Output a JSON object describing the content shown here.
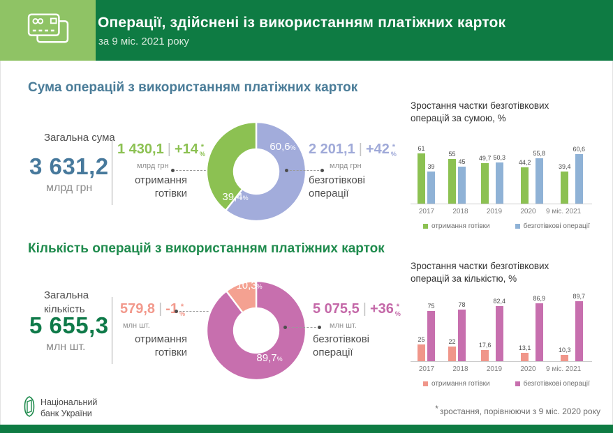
{
  "header": {
    "title": "Операції, здійснені із використанням платіжних карток",
    "subtitle": "за 9 міс. 2021 року"
  },
  "symbols": {
    "separator": "|",
    "asterisk": "*",
    "percent": "%"
  },
  "sections": {
    "sum": {
      "heading": "Сума операцій з використанням платіжних карток",
      "total": {
        "label": "Загальна сума",
        "value": "3 631,2",
        "unit": "млрд грн"
      },
      "cash": {
        "value": "1 430,1",
        "change": "+14",
        "unit": "млрд грн",
        "label": "отримання готівки"
      },
      "cashless": {
        "value": "2 201,1",
        "change": "+42",
        "unit": "млрд грн",
        "label": "безготівкові операції"
      }
    },
    "count": {
      "heading": "Кількість операцій з використанням платіжних карток",
      "total": {
        "label": "Загальна кількість",
        "value": "5 655,3",
        "unit": "млн шт."
      },
      "cash": {
        "value": "579,8",
        "change": "-1",
        "unit": "млн шт.",
        "label": "отримання готівки"
      },
      "cashless": {
        "value": "5 075,5",
        "change": "+36",
        "unit": "млн шт.",
        "label": "безготівкові операції"
      }
    }
  },
  "footer": {
    "brand_line1": "Національний",
    "brand_line2": "банк України",
    "footnote_mark": "*",
    "footnote_text": "зростання, порівнюючи з 9 міс. 2020 року"
  },
  "colors": {
    "header_green": "#0e7b43",
    "light_green_block": "#8fc365",
    "accent_green": "#8cc152",
    "accent_periwinkle": "#a2acdb",
    "accent_bar_blue": "#8fb2d6",
    "accent_salmon": "#f4a191",
    "accent_bar_salmon": "#f0968a",
    "accent_pink": "#c76fae",
    "heading_steel_blue": "#4a7c98",
    "heading_green": "#1f8b4d"
  },
  "chart_data": [
    {
      "id": "donut_sum",
      "type": "pie",
      "donut": true,
      "segments": [
        {
          "label": "безготівкові операції",
          "value": 60.6,
          "display": "60,6",
          "color": "#a2acdb"
        },
        {
          "label": "отримання готівки",
          "value": 39.4,
          "display": "39,4",
          "color": "#8cc152"
        }
      ]
    },
    {
      "id": "bars_sum",
      "type": "bar",
      "title": "Зростання частки безготівкових операцій за сумою, %",
      "categories": [
        "2017",
        "2018",
        "2019",
        "2020",
        "9 міс. 2021"
      ],
      "series": [
        {
          "name": "отримання готівки",
          "color": "#8cc152",
          "values": [
            61,
            55,
            49.7,
            44.2,
            39.4
          ],
          "labels": [
            "61",
            "55",
            "49,7",
            "44,2",
            "39,4"
          ]
        },
        {
          "name": "безготівкові операції",
          "color": "#8fb2d6",
          "values": [
            39,
            45,
            50.3,
            55.8,
            60.6
          ],
          "labels": [
            "39",
            "45",
            "50,3",
            "55,8",
            "60,6"
          ]
        }
      ],
      "ylim": [
        0,
        100
      ],
      "grid": false,
      "legend_position": "bottom"
    },
    {
      "id": "donut_count",
      "type": "pie",
      "donut": true,
      "segments": [
        {
          "label": "безготівкові операції",
          "value": 89.7,
          "display": "89,7",
          "color": "#c76fae"
        },
        {
          "label": "отримання готівки",
          "value": 10.3,
          "display": "10,3",
          "color": "#f4a191"
        }
      ]
    },
    {
      "id": "bars_count",
      "type": "bar",
      "title": "Зростання частки безготівкових операцій за кількістю, %",
      "categories": [
        "2017",
        "2018",
        "2019",
        "2020",
        "9 міс. 2021"
      ],
      "series": [
        {
          "name": "отримання готівки",
          "color": "#f0968a",
          "values": [
            25,
            22,
            17.6,
            13.1,
            10.3
          ],
          "labels": [
            "25",
            "22",
            "17,6",
            "13,1",
            "10,3"
          ]
        },
        {
          "name": "безготівкові операції",
          "color": "#c76fae",
          "values": [
            75,
            78,
            82.4,
            86.9,
            89.7
          ],
          "labels": [
            "75",
            "78",
            "82,4",
            "86,9",
            "89,7"
          ]
        }
      ],
      "ylim": [
        0,
        100
      ],
      "grid": false,
      "legend_position": "bottom"
    }
  ]
}
